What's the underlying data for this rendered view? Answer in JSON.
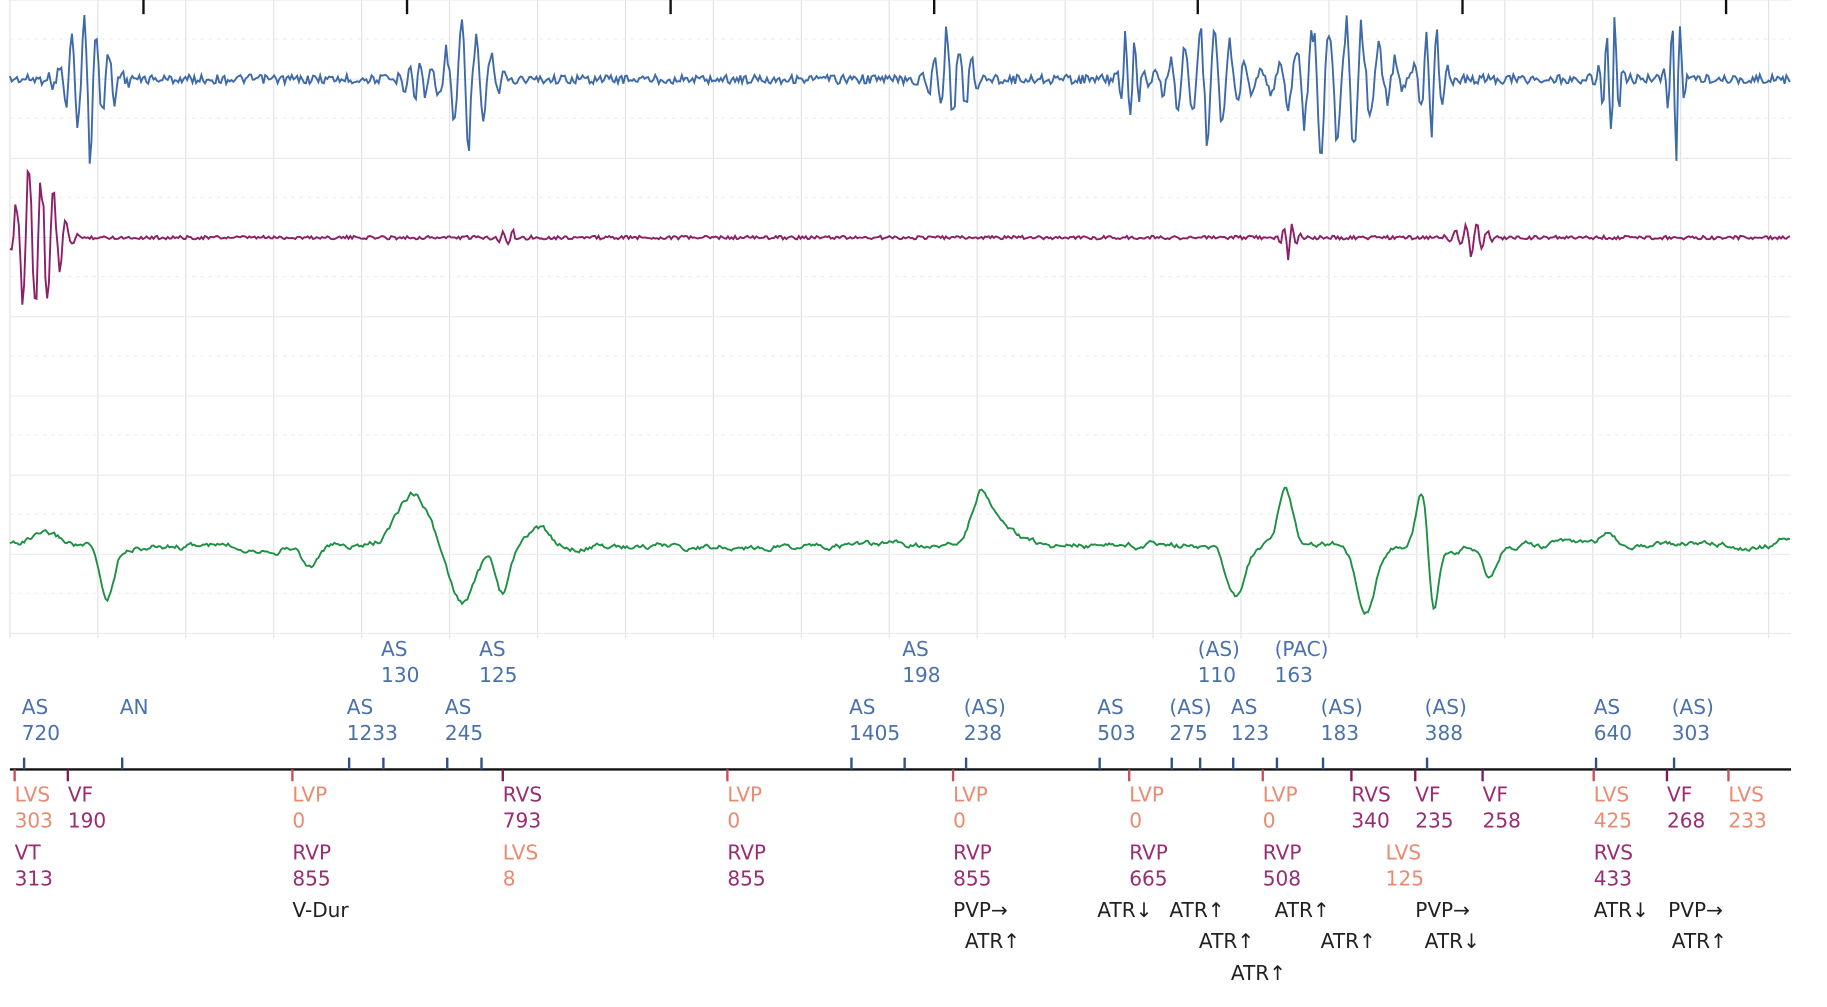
{
  "atrial_markers": [
    {
      "label": "AS",
      "value": 130
    },
    {
      "label": "AS",
      "value": 125
    },
    {
      "label": "AS",
      "value": 198
    },
    {
      "label": "(AS)",
      "value": 110
    },
    {
      "label": "(PAC)",
      "value": 163
    },
    {
      "label": "AS",
      "value": 720
    },
    {
      "label": "AN"
    },
    {
      "label": "AS",
      "value": 1233
    },
    {
      "label": "AS",
      "value": 245
    },
    {
      "label": "AS",
      "value": 1405
    },
    {
      "label": "(AS)",
      "value": 238
    },
    {
      "label": "AS",
      "value": 503
    },
    {
      "label": "(AS)",
      "value": 275
    },
    {
      "label": "AS",
      "value": 123
    },
    {
      "label": "(AS)",
      "value": 183
    },
    {
      "label": "(AS)",
      "value": 388
    },
    {
      "label": "AS",
      "value": 640
    },
    {
      "label": "(AS)",
      "value": 303
    }
  ],
  "ventricular_markers": [
    {
      "label": "LVS",
      "value": 303
    },
    {
      "label": "VF",
      "value": 190
    },
    {
      "label": "VT",
      "value": 313
    },
    {
      "label": "LVP",
      "value": 0
    },
    {
      "label": "RVP",
      "value": 855
    },
    {
      "label": "RVS",
      "value": 793
    },
    {
      "label": "LVS",
      "value": 8
    },
    {
      "label": "LVP",
      "value": 0
    },
    {
      "label": "RVP",
      "value": 855
    },
    {
      "label": "LVP",
      "value": 0
    },
    {
      "label": "RVP",
      "value": 855
    },
    {
      "label": "LVP",
      "value": 0
    },
    {
      "label": "RVP",
      "value": 665
    },
    {
      "label": "LVP",
      "value": 0
    },
    {
      "label": "RVP",
      "value": 508
    },
    {
      "label": "RVS",
      "value": 340
    },
    {
      "label": "LVS",
      "value": 125
    },
    {
      "label": "VF",
      "value": 235
    },
    {
      "label": "VF",
      "value": 258
    },
    {
      "label": "LVS",
      "value": 425
    },
    {
      "label": "RVS",
      "value": 433
    },
    {
      "label": "VF",
      "value": 268
    },
    {
      "label": "LVS",
      "value": 233
    }
  ],
  "events": [
    "V-Dur",
    "PVP→",
    "ATR↑",
    "ATR↓",
    "ATR↑",
    "ATR↑",
    "ATR↑",
    "ATR↑",
    "ATR↑",
    "PVP→",
    "ATR↓",
    "ATR↓",
    "PVP→",
    "ATR↑"
  ]
}
